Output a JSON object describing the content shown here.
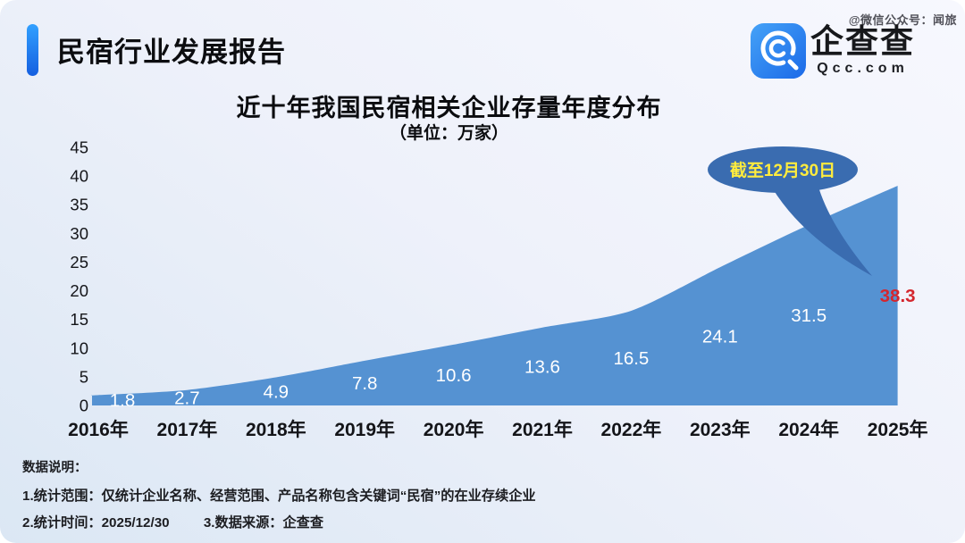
{
  "header": {
    "title": "民宿行业发展报告",
    "watermark": "@微信公众号：闻旅",
    "logo": {
      "name": "企查查",
      "domain": "Qcc.com",
      "icon_color": "#2b7ff2"
    }
  },
  "chart_data": {
    "type": "area",
    "title": "近十年我国民宿相关企业存量年度分布",
    "subtitle": "（单位：万家）",
    "unit": "万家",
    "categories": [
      "2016年",
      "2017年",
      "2018年",
      "2019年",
      "2020年",
      "2021年",
      "2022年",
      "2023年",
      "2024年",
      "2025年"
    ],
    "values": [
      1.8,
      2.7,
      4.9,
      7.8,
      10.6,
      13.6,
      16.5,
      24.1,
      31.5,
      38.3
    ],
    "ylim": [
      0,
      45
    ],
    "ytick_step": 5,
    "grid": false,
    "legend_position": "none",
    "area_color": "#5592d2",
    "label_color": "#ffffff",
    "last_label_color": "#d4262e",
    "annotation": {
      "label": "截至12月30日",
      "points_to": "2025年",
      "bubble_color": "#3a6cb0",
      "text_color": "#ffec3d"
    }
  },
  "footer": {
    "heading": "数据说明：",
    "notes": [
      "1.统计范围：仅统计企业名称、经营范围、产品名称包含关键词“民宿”的在业存续企业",
      "2.统计时间：2025/12/30",
      "3.数据来源：企查查"
    ]
  }
}
